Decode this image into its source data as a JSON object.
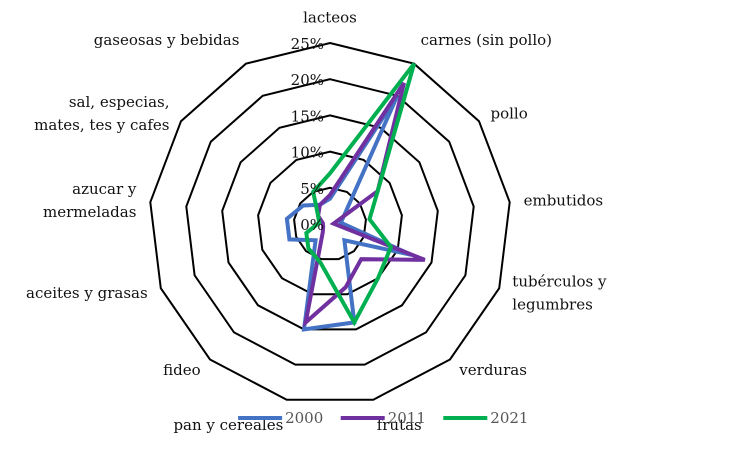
{
  "chart_data": {
    "type": "radar",
    "categories": [
      "lacteos",
      "carnes (sin pollo)",
      "pollo",
      "embutidos",
      "tubérculos y legumbres",
      "verduras",
      "frutas",
      "pan y cereales",
      "fideo",
      "aceites y grasas",
      "azucar y mermeladas",
      "sal, especias, mates, tes y cafes",
      "gaseosas y bebidas"
    ],
    "category_lines": [
      [
        "lacteos"
      ],
      [
        "carnes (sin pollo)"
      ],
      [
        "pollo"
      ],
      [
        "embutidos"
      ],
      [
        "tubérculos y",
        "legumbres"
      ],
      [
        "verduras"
      ],
      [
        "frutas"
      ],
      [
        "pan y cereales"
      ],
      [
        "fideo"
      ],
      [
        "aceites y grasas"
      ],
      [
        "azucar y",
        "mermeladas"
      ],
      [
        "sal, especias,",
        "mates, tes y cafes"
      ],
      [
        "gaseosas y bebidas"
      ]
    ],
    "radial_ticks": [
      "0%",
      "5%",
      "10%",
      "15%",
      "20%",
      "25%"
    ],
    "rmax": 25,
    "series": [
      {
        "name": "2000",
        "color": "#4472C4",
        "values": [
          3.5,
          20,
          2.5,
          1.5,
          12,
          3,
          14,
          15,
          3,
          6,
          6,
          4.5,
          3
        ]
      },
      {
        "name": "2011",
        "color": "#7030A0",
        "values": [
          4,
          22,
          8,
          0.5,
          14,
          6.5,
          9,
          14,
          1.5,
          1,
          1,
          2,
          3
        ]
      },
      {
        "name": "2021",
        "color": "#00B050",
        "values": [
          7,
          25,
          8,
          5.5,
          9,
          10,
          14,
          5.5,
          4.5,
          3.5,
          1.5,
          2,
          5
        ]
      }
    ],
    "legend_position": "bottom"
  }
}
